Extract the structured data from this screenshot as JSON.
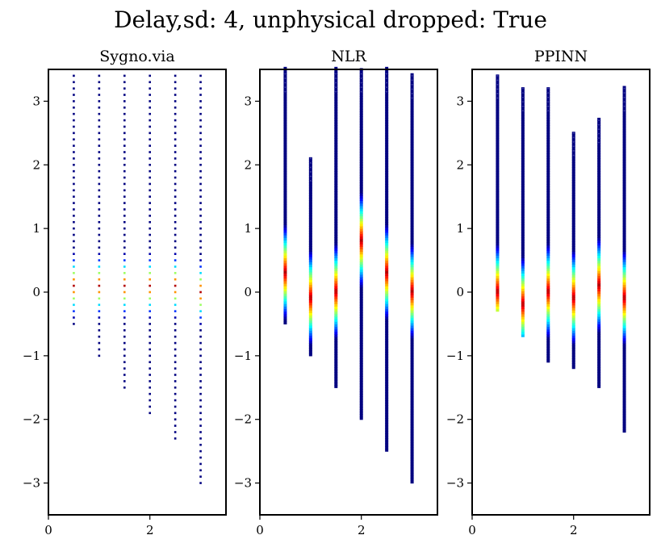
{
  "figure": {
    "title": "Delay,sd: 4, unphysical dropped: True"
  },
  "chart_data": [
    {
      "type": "scatter",
      "title": "Sygno.via",
      "xlabel": "",
      "ylabel": "",
      "xlim": [
        0,
        3.5
      ],
      "ylim": [
        -3.5,
        3.5
      ],
      "x_ticks": [
        0,
        2
      ],
      "y_ticks": [
        -3,
        -2,
        -1,
        0,
        1,
        2,
        3
      ],
      "grid": false,
      "colormap": "jet",
      "columns": [
        {
          "x": 0.5,
          "y_min": -0.5,
          "y_max": 3.4,
          "y_peak": 0.1,
          "points": "discrete"
        },
        {
          "x": 1.0,
          "y_min": -1.0,
          "y_max": 3.4,
          "y_peak": 0.1,
          "points": "discrete"
        },
        {
          "x": 1.5,
          "y_min": -1.5,
          "y_max": 3.4,
          "y_peak": 0.1,
          "points": "discrete"
        },
        {
          "x": 2.0,
          "y_min": -1.9,
          "y_max": 3.4,
          "y_peak": 0.1,
          "points": "discrete"
        },
        {
          "x": 2.5,
          "y_min": -2.3,
          "y_max": 3.4,
          "y_peak": 0.1,
          "points": "discrete"
        },
        {
          "x": 3.0,
          "y_min": -3.0,
          "y_max": 3.4,
          "y_peak": 0.0,
          "points": "discrete"
        }
      ]
    },
    {
      "type": "scatter",
      "title": "NLR",
      "xlabel": "",
      "ylabel": "",
      "xlim": [
        0,
        3.5
      ],
      "ylim": [
        -3.5,
        3.5
      ],
      "x_ticks": [
        0,
        2
      ],
      "y_ticks": [
        -3,
        -2,
        -1,
        0,
        1,
        2,
        3
      ],
      "grid": false,
      "colormap": "jet",
      "columns": [
        {
          "x": 0.5,
          "y_min": -0.5,
          "y_max": 3.5,
          "y_peak": 0.3,
          "points": "continuous"
        },
        {
          "x": 1.0,
          "y_min": -1.0,
          "y_max": 2.1,
          "y_peak": -0.1,
          "points": "continuous"
        },
        {
          "x": 1.5,
          "y_min": -1.5,
          "y_max": 3.5,
          "y_peak": 0.0,
          "points": "continuous"
        },
        {
          "x": 2.0,
          "y_min": -2.0,
          "y_max": 3.5,
          "y_peak": 0.8,
          "points": "continuous"
        },
        {
          "x": 2.5,
          "y_min": -2.5,
          "y_max": 3.5,
          "y_peak": 0.3,
          "points": "continuous"
        },
        {
          "x": 3.0,
          "y_min": -3.0,
          "y_max": 3.4,
          "y_peak": 0.0,
          "points": "continuous"
        }
      ]
    },
    {
      "type": "scatter",
      "title": "PPINN",
      "xlabel": "",
      "ylabel": "",
      "xlim": [
        0,
        3.5
      ],
      "ylim": [
        -3.5,
        3.5
      ],
      "x_ticks": [
        0,
        2
      ],
      "y_ticks": [
        -3,
        -2,
        -1,
        0,
        1,
        2,
        3
      ],
      "grid": false,
      "colormap": "jet",
      "columns": [
        {
          "x": 0.5,
          "y_min": -0.3,
          "y_max": 3.4,
          "y_peak": 0.0,
          "points": "continuous"
        },
        {
          "x": 1.0,
          "y_min": -0.7,
          "y_max": 3.2,
          "y_peak": -0.2,
          "points": "continuous"
        },
        {
          "x": 1.5,
          "y_min": -1.1,
          "y_max": 3.2,
          "y_peak": 0.0,
          "points": "continuous"
        },
        {
          "x": 2.0,
          "y_min": -1.2,
          "y_max": 2.5,
          "y_peak": -0.1,
          "points": "continuous"
        },
        {
          "x": 2.5,
          "y_min": -1.5,
          "y_max": 2.7,
          "y_peak": 0.1,
          "points": "continuous"
        },
        {
          "x": 3.0,
          "y_min": -2.2,
          "y_max": 3.2,
          "y_peak": -0.1,
          "points": "continuous"
        }
      ]
    }
  ]
}
